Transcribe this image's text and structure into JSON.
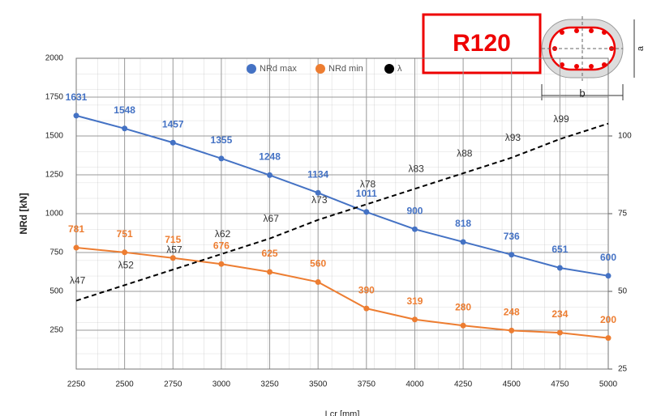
{
  "chart_data": {
    "type": "line",
    "y_label": "NRd [kN]",
    "x_label": "Lcr [mm]",
    "badge": "R120",
    "dim_a": "a",
    "dim_b": "b",
    "x": [
      2250,
      2500,
      2750,
      3000,
      3250,
      3500,
      3750,
      4000,
      4250,
      4500,
      4750,
      5000
    ],
    "xlim": [
      2250,
      5000
    ],
    "xticks": [
      2250,
      2500,
      2750,
      3000,
      3250,
      3500,
      3750,
      4000,
      4250,
      4500,
      4750,
      5000
    ],
    "ylim": [
      0,
      2000
    ],
    "yticks": [
      250,
      500,
      750,
      1000,
      1250,
      1500,
      1750,
      2000
    ],
    "y2lim": [
      25,
      125
    ],
    "y2ticks": [
      25,
      50,
      75,
      100
    ],
    "grid": true,
    "legend": "top",
    "series": [
      {
        "name": "NRd max",
        "color": "#4472c4",
        "values": [
          1631,
          1548,
          1457,
          1355,
          1248,
          1134,
          1011,
          900,
          818,
          736,
          651,
          600
        ]
      },
      {
        "name": "NRd min",
        "color": "#ed7d31",
        "values": [
          781,
          751,
          715,
          676,
          625,
          560,
          390,
          319,
          280,
          248,
          234,
          200
        ]
      },
      {
        "name": "λ",
        "color": "#000000",
        "axis": "y2",
        "dashed": true,
        "values": [
          47,
          52,
          57,
          62,
          67,
          73,
          78,
          83,
          88,
          93,
          99,
          104
        ],
        "value_labels": [
          "λ47",
          "λ52",
          "λ57",
          "λ62",
          "λ67",
          "λ73",
          "λ78",
          "λ83",
          "λ88",
          "λ93",
          "λ99",
          null
        ]
      }
    ]
  }
}
